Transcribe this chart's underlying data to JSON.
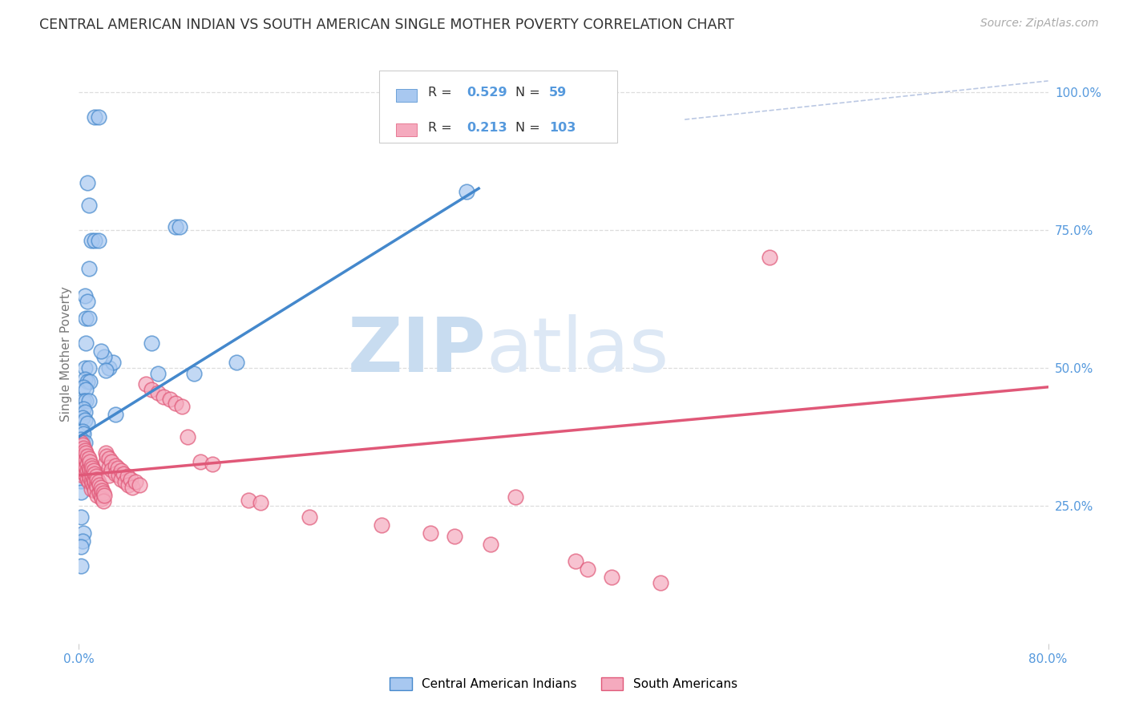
{
  "title": "CENTRAL AMERICAN INDIAN VS SOUTH AMERICAN SINGLE MOTHER POVERTY CORRELATION CHART",
  "source": "Source: ZipAtlas.com",
  "ylabel": "Single Mother Poverty",
  "xlim": [
    0.0,
    0.8
  ],
  "ylim": [
    0.0,
    1.05
  ],
  "ytick_positions": [
    0.25,
    0.5,
    0.75,
    1.0
  ],
  "ytick_labels_right": [
    "25.0%",
    "50.0%",
    "75.0%",
    "100.0%"
  ],
  "blue_color": "#a8c8f0",
  "blue_color_line": "#4488cc",
  "pink_color": "#f5aabe",
  "pink_color_line": "#e05878",
  "blue_R": 0.529,
  "blue_N": 59,
  "pink_R": 0.213,
  "pink_N": 103,
  "blue_scatter": [
    [
      0.013,
      0.955
    ],
    [
      0.016,
      0.955
    ],
    [
      0.007,
      0.835
    ],
    [
      0.008,
      0.795
    ],
    [
      0.01,
      0.73
    ],
    [
      0.013,
      0.73
    ],
    [
      0.016,
      0.73
    ],
    [
      0.008,
      0.68
    ],
    [
      0.005,
      0.63
    ],
    [
      0.007,
      0.62
    ],
    [
      0.006,
      0.59
    ],
    [
      0.008,
      0.59
    ],
    [
      0.006,
      0.545
    ],
    [
      0.005,
      0.5
    ],
    [
      0.008,
      0.5
    ],
    [
      0.005,
      0.48
    ],
    [
      0.007,
      0.475
    ],
    [
      0.009,
      0.475
    ],
    [
      0.004,
      0.465
    ],
    [
      0.006,
      0.46
    ],
    [
      0.004,
      0.44
    ],
    [
      0.006,
      0.44
    ],
    [
      0.008,
      0.44
    ],
    [
      0.004,
      0.425
    ],
    [
      0.005,
      0.42
    ],
    [
      0.003,
      0.41
    ],
    [
      0.005,
      0.405
    ],
    [
      0.007,
      0.4
    ],
    [
      0.003,
      0.385
    ],
    [
      0.004,
      0.38
    ],
    [
      0.002,
      0.37
    ],
    [
      0.003,
      0.365
    ],
    [
      0.005,
      0.365
    ],
    [
      0.003,
      0.35
    ],
    [
      0.004,
      0.35
    ],
    [
      0.002,
      0.335
    ],
    [
      0.003,
      0.33
    ],
    [
      0.002,
      0.31
    ],
    [
      0.002,
      0.295
    ],
    [
      0.002,
      0.275
    ],
    [
      0.002,
      0.23
    ],
    [
      0.004,
      0.2
    ],
    [
      0.003,
      0.185
    ],
    [
      0.002,
      0.175
    ],
    [
      0.002,
      0.14
    ],
    [
      0.03,
      0.415
    ],
    [
      0.025,
      0.5
    ],
    [
      0.028,
      0.51
    ],
    [
      0.021,
      0.52
    ],
    [
      0.022,
      0.495
    ],
    [
      0.018,
      0.53
    ],
    [
      0.06,
      0.545
    ],
    [
      0.065,
      0.49
    ],
    [
      0.095,
      0.49
    ],
    [
      0.08,
      0.755
    ],
    [
      0.083,
      0.755
    ],
    [
      0.13,
      0.51
    ],
    [
      0.32,
      0.82
    ]
  ],
  "pink_scatter": [
    [
      0.002,
      0.365
    ],
    [
      0.002,
      0.345
    ],
    [
      0.002,
      0.33
    ],
    [
      0.002,
      0.32
    ],
    [
      0.003,
      0.36
    ],
    [
      0.003,
      0.345
    ],
    [
      0.003,
      0.33
    ],
    [
      0.003,
      0.318
    ],
    [
      0.003,
      0.305
    ],
    [
      0.004,
      0.355
    ],
    [
      0.004,
      0.34
    ],
    [
      0.004,
      0.325
    ],
    [
      0.004,
      0.31
    ],
    [
      0.005,
      0.35
    ],
    [
      0.005,
      0.338
    ],
    [
      0.005,
      0.323
    ],
    [
      0.005,
      0.308
    ],
    [
      0.006,
      0.345
    ],
    [
      0.006,
      0.333
    ],
    [
      0.006,
      0.32
    ],
    [
      0.006,
      0.305
    ],
    [
      0.007,
      0.34
    ],
    [
      0.007,
      0.325
    ],
    [
      0.007,
      0.313
    ],
    [
      0.007,
      0.298
    ],
    [
      0.008,
      0.335
    ],
    [
      0.008,
      0.32
    ],
    [
      0.008,
      0.308
    ],
    [
      0.008,
      0.293
    ],
    [
      0.009,
      0.33
    ],
    [
      0.009,
      0.315
    ],
    [
      0.009,
      0.3
    ],
    [
      0.01,
      0.323
    ],
    [
      0.01,
      0.31
    ],
    [
      0.01,
      0.295
    ],
    [
      0.01,
      0.28
    ],
    [
      0.011,
      0.318
    ],
    [
      0.011,
      0.305
    ],
    [
      0.011,
      0.29
    ],
    [
      0.012,
      0.313
    ],
    [
      0.012,
      0.298
    ],
    [
      0.012,
      0.285
    ],
    [
      0.013,
      0.308
    ],
    [
      0.013,
      0.293
    ],
    [
      0.013,
      0.278
    ],
    [
      0.014,
      0.303
    ],
    [
      0.014,
      0.288
    ],
    [
      0.015,
      0.298
    ],
    [
      0.015,
      0.283
    ],
    [
      0.015,
      0.268
    ],
    [
      0.016,
      0.293
    ],
    [
      0.017,
      0.288
    ],
    [
      0.017,
      0.273
    ],
    [
      0.018,
      0.283
    ],
    [
      0.018,
      0.268
    ],
    [
      0.019,
      0.278
    ],
    [
      0.019,
      0.263
    ],
    [
      0.02,
      0.273
    ],
    [
      0.02,
      0.258
    ],
    [
      0.021,
      0.268
    ],
    [
      0.022,
      0.345
    ],
    [
      0.022,
      0.33
    ],
    [
      0.023,
      0.34
    ],
    [
      0.025,
      0.335
    ],
    [
      0.025,
      0.32
    ],
    [
      0.025,
      0.305
    ],
    [
      0.027,
      0.33
    ],
    [
      0.027,
      0.315
    ],
    [
      0.03,
      0.323
    ],
    [
      0.03,
      0.308
    ],
    [
      0.032,
      0.318
    ],
    [
      0.033,
      0.305
    ],
    [
      0.035,
      0.313
    ],
    [
      0.035,
      0.298
    ],
    [
      0.037,
      0.308
    ],
    [
      0.038,
      0.293
    ],
    [
      0.04,
      0.303
    ],
    [
      0.041,
      0.288
    ],
    [
      0.043,
      0.298
    ],
    [
      0.044,
      0.283
    ],
    [
      0.047,
      0.293
    ],
    [
      0.05,
      0.288
    ],
    [
      0.055,
      0.47
    ],
    [
      0.06,
      0.46
    ],
    [
      0.065,
      0.455
    ],
    [
      0.07,
      0.448
    ],
    [
      0.075,
      0.443
    ],
    [
      0.08,
      0.435
    ],
    [
      0.085,
      0.43
    ],
    [
      0.09,
      0.375
    ],
    [
      0.1,
      0.33
    ],
    [
      0.11,
      0.325
    ],
    [
      0.14,
      0.26
    ],
    [
      0.15,
      0.255
    ],
    [
      0.19,
      0.23
    ],
    [
      0.25,
      0.215
    ],
    [
      0.29,
      0.2
    ],
    [
      0.31,
      0.195
    ],
    [
      0.34,
      0.18
    ],
    [
      0.36,
      0.265
    ],
    [
      0.41,
      0.15
    ],
    [
      0.42,
      0.135
    ],
    [
      0.44,
      0.12
    ],
    [
      0.48,
      0.11
    ],
    [
      0.57,
      0.7
    ]
  ],
  "blue_line": [
    [
      0.0,
      0.375
    ],
    [
      0.33,
      0.825
    ]
  ],
  "pink_line": [
    [
      0.0,
      0.305
    ],
    [
      0.8,
      0.465
    ]
  ],
  "diag_line": [
    [
      0.5,
      0.95
    ],
    [
      0.8,
      1.02
    ]
  ],
  "watermark_zip": "ZIP",
  "watermark_atlas": "atlas",
  "watermark_color": "#c8dcf0",
  "background_color": "#ffffff",
  "grid_color": "#dddddd",
  "title_color": "#333333",
  "axis_label_color": "#777777",
  "right_tick_color": "#5599dd",
  "legend_blue_label": "Central American Indians",
  "legend_pink_label": "South Americans"
}
